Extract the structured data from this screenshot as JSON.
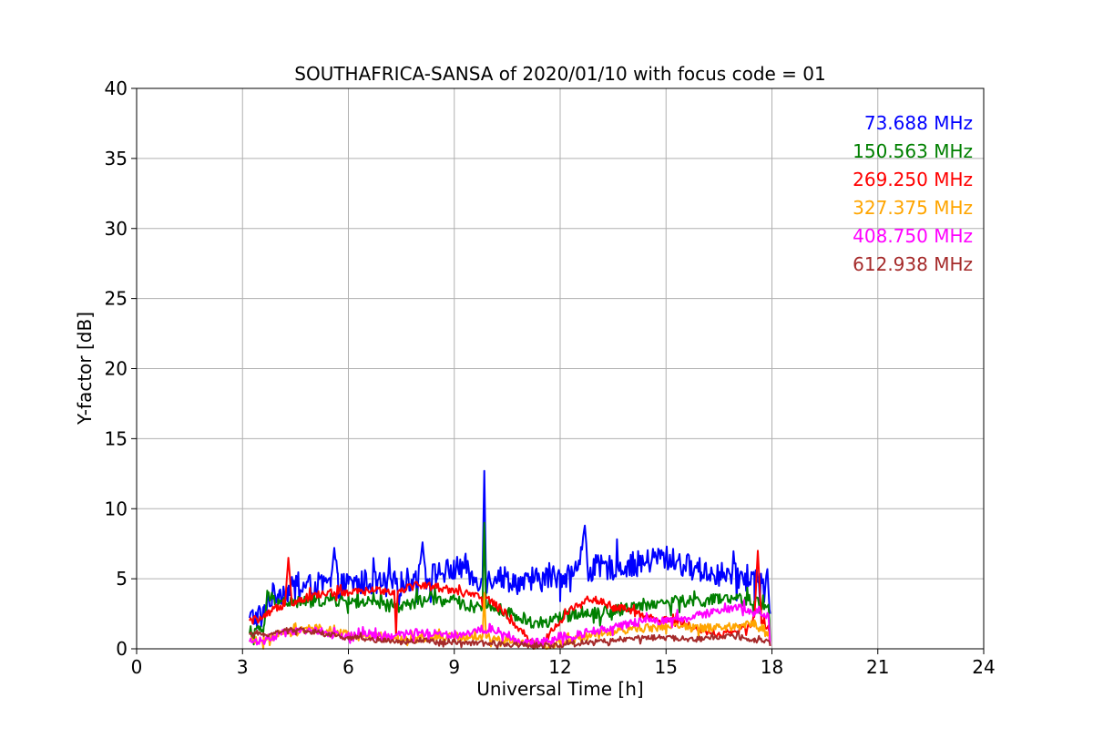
{
  "chart_data": {
    "type": "line",
    "title": "SOUTHAFRICA-SANSA of 2020/01/10 with focus code = 01",
    "xlabel": "Universal Time [h]",
    "ylabel": "Y-factor [dB]",
    "xlim": [
      0,
      24
    ],
    "ylim": [
      0,
      40
    ],
    "xticks": [
      "0",
      "3",
      "6",
      "9",
      "12",
      "15",
      "18",
      "21",
      "24"
    ],
    "yticks": [
      "0",
      "5",
      "10",
      "15",
      "20",
      "25",
      "30",
      "35",
      "40"
    ],
    "grid": true,
    "legend_position": "top-right",
    "series": [
      {
        "name": "73.688 MHz",
        "color": "#0000ff",
        "points": [
          [
            3.2,
            2.2
          ],
          [
            3.6,
            2.3
          ],
          [
            3.7,
            3.6
          ],
          [
            4.0,
            4.0
          ],
          [
            4.5,
            4.3
          ],
          [
            5.0,
            4.5
          ],
          [
            5.5,
            4.6
          ],
          [
            5.6,
            7.2
          ],
          [
            5.7,
            4.5
          ],
          [
            6.0,
            4.6
          ],
          [
            6.5,
            4.8
          ],
          [
            7.0,
            4.6
          ],
          [
            7.5,
            4.7
          ],
          [
            8.0,
            5.2
          ],
          [
            8.1,
            7.6
          ],
          [
            8.2,
            5.0
          ],
          [
            8.5,
            5.4
          ],
          [
            9.0,
            5.6
          ],
          [
            9.3,
            6.0
          ],
          [
            9.5,
            5.0
          ],
          [
            9.8,
            5.0
          ],
          [
            9.85,
            12.7
          ],
          [
            9.9,
            4.8
          ],
          [
            10.2,
            5.3
          ],
          [
            10.5,
            5.0
          ],
          [
            11.0,
            4.6
          ],
          [
            11.5,
            5.0
          ],
          [
            12.0,
            5.2
          ],
          [
            12.5,
            5.5
          ],
          [
            12.7,
            8.8
          ],
          [
            12.8,
            5.5
          ],
          [
            13.0,
            5.8
          ],
          [
            13.5,
            5.8
          ],
          [
            14.0,
            6.0
          ],
          [
            14.5,
            6.2
          ],
          [
            14.8,
            6.6
          ],
          [
            15.0,
            6.5
          ],
          [
            15.5,
            6.0
          ],
          [
            16.0,
            5.6
          ],
          [
            16.5,
            5.3
          ],
          [
            17.0,
            5.2
          ],
          [
            17.5,
            5.0
          ],
          [
            17.9,
            4.8
          ],
          [
            17.95,
            2.5
          ]
        ]
      },
      {
        "name": "150.563 MHz",
        "color": "#008000",
        "points": [
          [
            3.2,
            1.1
          ],
          [
            3.6,
            1.4
          ],
          [
            3.7,
            3.8
          ],
          [
            4.0,
            3.4
          ],
          [
            4.5,
            3.3
          ],
          [
            5.0,
            3.4
          ],
          [
            5.5,
            3.5
          ],
          [
            6.0,
            3.4
          ],
          [
            6.5,
            3.3
          ],
          [
            7.0,
            3.1
          ],
          [
            7.5,
            3.0
          ],
          [
            8.0,
            3.4
          ],
          [
            8.5,
            3.5
          ],
          [
            9.0,
            3.4
          ],
          [
            9.5,
            3.0
          ],
          [
            9.8,
            3.2
          ],
          [
            9.85,
            9.0
          ],
          [
            9.9,
            3.1
          ],
          [
            10.5,
            2.6
          ],
          [
            11.0,
            2.0
          ],
          [
            11.5,
            1.8
          ],
          [
            12.0,
            2.2
          ],
          [
            12.5,
            2.6
          ],
          [
            13.0,
            2.6
          ],
          [
            13.5,
            2.7
          ],
          [
            14.0,
            3.0
          ],
          [
            14.5,
            3.2
          ],
          [
            15.0,
            3.3
          ],
          [
            15.5,
            3.4
          ],
          [
            16.0,
            3.4
          ],
          [
            16.5,
            3.5
          ],
          [
            17.0,
            3.5
          ],
          [
            17.5,
            3.4
          ],
          [
            17.9,
            3.2
          ],
          [
            17.95,
            0.5
          ]
        ]
      },
      {
        "name": "269.250 MHz",
        "color": "#ff0000",
        "points": [
          [
            3.2,
            2.0
          ],
          [
            3.6,
            2.2
          ],
          [
            3.7,
            2.4
          ],
          [
            4.0,
            3.0
          ],
          [
            4.2,
            3.2
          ],
          [
            4.3,
            6.5
          ],
          [
            4.4,
            3.3
          ],
          [
            5.0,
            3.8
          ],
          [
            5.5,
            4.0
          ],
          [
            6.0,
            4.0
          ],
          [
            6.5,
            4.1
          ],
          [
            7.0,
            4.2
          ],
          [
            7.3,
            4.0
          ],
          [
            7.35,
            1.2
          ],
          [
            7.4,
            4.2
          ],
          [
            8.0,
            4.6
          ],
          [
            8.5,
            4.4
          ],
          [
            9.0,
            4.2
          ],
          [
            9.5,
            3.8
          ],
          [
            10.0,
            3.5
          ],
          [
            10.5,
            2.4
          ],
          [
            11.0,
            1.0
          ],
          [
            11.3,
            0.3
          ],
          [
            11.5,
            0.4
          ],
          [
            12.0,
            2.0
          ],
          [
            12.5,
            3.2
          ],
          [
            12.8,
            3.6
          ],
          [
            13.0,
            3.5
          ],
          [
            13.5,
            3.0
          ],
          [
            14.0,
            2.7
          ],
          [
            14.5,
            2.2
          ],
          [
            15.0,
            2.0
          ],
          [
            15.5,
            1.8
          ],
          [
            16.0,
            1.4
          ],
          [
            16.5,
            1.0
          ],
          [
            17.0,
            1.2
          ],
          [
            17.5,
            2.0
          ],
          [
            17.6,
            7.0
          ],
          [
            17.7,
            2.0
          ],
          [
            17.9,
            1.6
          ],
          [
            17.95,
            0.3
          ]
        ]
      },
      {
        "name": "327.375 MHz",
        "color": "#ffa500",
        "points": [
          [
            3.2,
            0.5
          ],
          [
            3.6,
            0.6
          ],
          [
            4.0,
            1.0
          ],
          [
            4.5,
            1.2
          ],
          [
            5.0,
            1.5
          ],
          [
            5.5,
            1.2
          ],
          [
            6.0,
            1.0
          ],
          [
            6.5,
            0.9
          ],
          [
            7.0,
            0.8
          ],
          [
            7.5,
            0.6
          ],
          [
            8.0,
            0.7
          ],
          [
            8.5,
            0.8
          ],
          [
            9.0,
            0.9
          ],
          [
            9.5,
            0.8
          ],
          [
            9.8,
            0.9
          ],
          [
            9.85,
            4.0
          ],
          [
            9.9,
            0.8
          ],
          [
            10.5,
            0.6
          ],
          [
            11.0,
            0.4
          ],
          [
            11.5,
            0.2
          ],
          [
            12.0,
            0.4
          ],
          [
            12.5,
            0.7
          ],
          [
            13.0,
            1.0
          ],
          [
            13.5,
            1.2
          ],
          [
            14.0,
            1.4
          ],
          [
            14.5,
            1.5
          ],
          [
            15.0,
            1.6
          ],
          [
            15.5,
            1.6
          ],
          [
            16.0,
            1.5
          ],
          [
            16.5,
            1.5
          ],
          [
            17.0,
            1.6
          ],
          [
            17.5,
            1.8
          ],
          [
            17.9,
            1.0
          ],
          [
            17.95,
            0.3
          ]
        ]
      },
      {
        "name": "408.750 MHz",
        "color": "#ff00ff",
        "points": [
          [
            3.2,
            0.5
          ],
          [
            3.6,
            0.6
          ],
          [
            4.0,
            1.0
          ],
          [
            4.5,
            1.2
          ],
          [
            5.0,
            1.4
          ],
          [
            5.5,
            1.0
          ],
          [
            6.0,
            0.9
          ],
          [
            6.5,
            1.0
          ],
          [
            7.0,
            0.8
          ],
          [
            7.5,
            1.0
          ],
          [
            8.0,
            1.2
          ],
          [
            8.5,
            1.1
          ],
          [
            9.0,
            1.0
          ],
          [
            9.5,
            1.2
          ],
          [
            10.0,
            1.5
          ],
          [
            10.5,
            1.0
          ],
          [
            11.0,
            0.4
          ],
          [
            11.5,
            0.5
          ],
          [
            12.0,
            0.9
          ],
          [
            12.5,
            1.0
          ],
          [
            13.0,
            1.3
          ],
          [
            13.5,
            1.5
          ],
          [
            14.0,
            1.8
          ],
          [
            14.5,
            2.0
          ],
          [
            15.0,
            2.0
          ],
          [
            15.5,
            2.2
          ],
          [
            16.0,
            2.4
          ],
          [
            16.5,
            2.7
          ],
          [
            17.0,
            3.0
          ],
          [
            17.5,
            2.6
          ],
          [
            17.9,
            2.4
          ],
          [
            17.95,
            0.2
          ]
        ]
      },
      {
        "name": "612.938 MHz",
        "color": "#a52a2a",
        "points": [
          [
            3.2,
            1.0
          ],
          [
            3.6,
            1.0
          ],
          [
            4.0,
            1.2
          ],
          [
            4.5,
            1.4
          ],
          [
            5.0,
            1.2
          ],
          [
            5.5,
            1.0
          ],
          [
            6.0,
            0.8
          ],
          [
            6.5,
            0.7
          ],
          [
            7.0,
            0.6
          ],
          [
            7.5,
            0.5
          ],
          [
            8.0,
            0.6
          ],
          [
            8.5,
            0.5
          ],
          [
            9.0,
            0.5
          ],
          [
            9.5,
            0.4
          ],
          [
            10.0,
            0.4
          ],
          [
            10.5,
            0.3
          ],
          [
            11.0,
            0.3
          ],
          [
            11.5,
            0.2
          ],
          [
            12.0,
            0.3
          ],
          [
            12.5,
            0.4
          ],
          [
            13.0,
            0.5
          ],
          [
            13.5,
            0.6
          ],
          [
            14.0,
            0.7
          ],
          [
            14.5,
            0.8
          ],
          [
            15.0,
            0.8
          ],
          [
            15.5,
            0.7
          ],
          [
            16.0,
            0.7
          ],
          [
            16.5,
            0.8
          ],
          [
            17.0,
            0.9
          ],
          [
            17.5,
            0.6
          ],
          [
            17.9,
            0.5
          ],
          [
            17.95,
            0.2
          ]
        ]
      }
    ]
  }
}
